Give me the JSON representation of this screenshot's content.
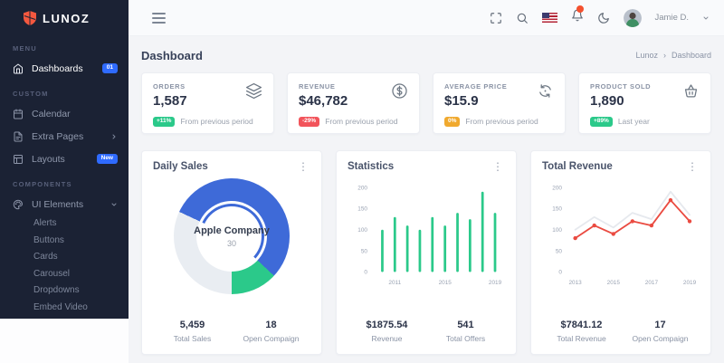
{
  "sidebar": {
    "logo_text": "LUNOZ",
    "sections": [
      {
        "label": "MENU",
        "items": [
          {
            "label": "Dashboards",
            "icon": "home-icon",
            "badge": "01",
            "active": true
          }
        ]
      },
      {
        "label": "CUSTOM",
        "items": [
          {
            "label": "Calendar",
            "icon": "calendar-icon"
          },
          {
            "label": "Extra Pages",
            "icon": "file-icon",
            "chevron": "right"
          },
          {
            "label": "Layouts",
            "icon": "layout-icon",
            "badge": "New"
          }
        ]
      },
      {
        "label": "COMPONENTS",
        "items": [
          {
            "label": "UI Elements",
            "icon": "palette-icon",
            "chevron": "down",
            "children": [
              "Alerts",
              "Buttons",
              "Cards",
              "Carousel",
              "Dropdowns",
              "Embed Video"
            ]
          }
        ]
      }
    ]
  },
  "navbar": {
    "user_name": "Jamie D.",
    "icons": [
      "menu-icon",
      "maximize-icon",
      "search-icon",
      "flag-us-icon",
      "bell-icon",
      "moon-icon",
      "avatar",
      "caret-down-icon"
    ]
  },
  "header": {
    "title": "Dashboard",
    "breadcrumb": {
      "parent": "Lunoz",
      "separator": "›",
      "current": "Dashboard"
    }
  },
  "stats": [
    {
      "label": "ORDERS",
      "value": "1,587",
      "badge": "+11%",
      "badge_color": "#2bc98a",
      "note": "From previous period",
      "icon": "layers-icon"
    },
    {
      "label": "REVENUE",
      "value": "$46,782",
      "badge": "-29%",
      "badge_color": "#f2545b",
      "note": "From previous period",
      "icon": "dollar-circle-icon"
    },
    {
      "label": "AVERAGE PRICE",
      "value": "$15.9",
      "badge": "0%",
      "badge_color": "#f0a92e",
      "note": "From previous period",
      "icon": "sync-icon"
    },
    {
      "label": "PRODUCT SOLD",
      "value": "1,890",
      "badge": "+89%",
      "badge_color": "#2bc98a",
      "note": "Last year",
      "icon": "basket-icon"
    }
  ],
  "chart_data": [
    {
      "id": "daily_sales",
      "type": "pie",
      "title": "Daily Sales",
      "center_label": "Apple Company",
      "center_value": "30",
      "start_angle_deg": 295,
      "segments": [
        {
          "name": "primary",
          "value": 55,
          "color": "#3e6ad8"
        },
        {
          "name": "secondary",
          "value": 13,
          "color": "#2bc98a"
        },
        {
          "name": "rest",
          "value": 32,
          "color": "#e9edf2"
        }
      ],
      "footer": [
        {
          "value": "5,459",
          "label": "Total Sales"
        },
        {
          "value": "18",
          "label": "Open Compaign"
        }
      ]
    },
    {
      "id": "statistics",
      "type": "bar",
      "title": "Statistics",
      "x": [
        2010,
        2011,
        2012,
        2013,
        2014,
        2015,
        2016,
        2017,
        2018,
        2019
      ],
      "values": [
        100,
        130,
        110,
        100,
        130,
        110,
        140,
        125,
        190,
        140
      ],
      "x_tick_labels": [
        "2011",
        "2015",
        "2019"
      ],
      "x_tick_positions": [
        1,
        5,
        9
      ],
      "y_ticks": [
        0,
        50,
        100,
        150,
        200
      ],
      "ylim": [
        0,
        200
      ],
      "color": "#2bc98a",
      "grid": false,
      "legend": false,
      "footer": [
        {
          "value": "$1875.54",
          "label": "Revenue"
        },
        {
          "value": "541",
          "label": "Total Offers"
        }
      ]
    },
    {
      "id": "total_revenue",
      "type": "line",
      "title": "Total Revenue",
      "x": [
        2013,
        2014,
        2015,
        2016,
        2017,
        2018,
        2019
      ],
      "series": [
        {
          "name": "background",
          "color": "#e6e9ee",
          "markers": false,
          "values": [
            100,
            130,
            105,
            140,
            125,
            190,
            135
          ]
        },
        {
          "name": "revenue",
          "color": "#ea4b41",
          "markers": true,
          "values": [
            80,
            110,
            90,
            120,
            110,
            170,
            120
          ]
        }
      ],
      "x_tick_labels": [
        "2013",
        "2015",
        "2017",
        "2019"
      ],
      "x_tick_positions": [
        0,
        2,
        4,
        6
      ],
      "y_ticks": [
        0,
        50,
        100,
        150,
        200
      ],
      "ylim": [
        0,
        200
      ],
      "grid": false,
      "legend": false,
      "footer": [
        {
          "value": "$7841.12",
          "label": "Total Revenue"
        },
        {
          "value": "17",
          "label": "Open Compaign"
        }
      ]
    }
  ]
}
